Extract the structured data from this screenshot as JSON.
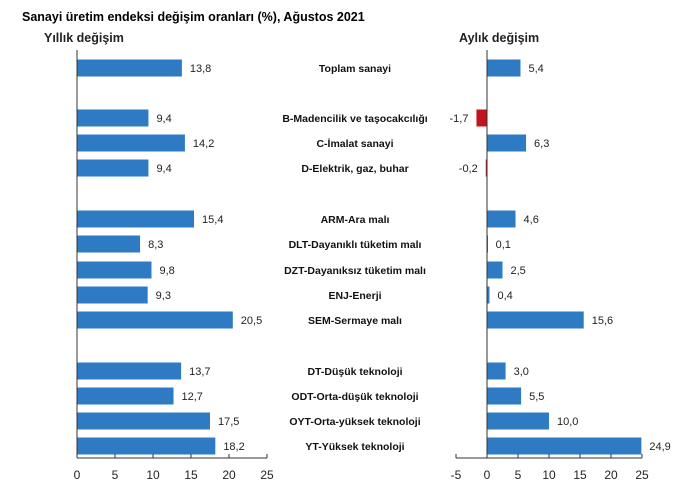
{
  "title": "Sanayi üretim endeksi değişim oranları (%), Ağustos 2021",
  "colors": {
    "positive": "#2E7BC4",
    "negative": "#C0151B",
    "axis": "#333333"
  },
  "chart_data": {
    "type": "bar",
    "orientation": "horizontal",
    "title": "Sanayi üretim endeksi değişim oranları (%), Ağustos 2021",
    "categories": [
      "Toplam sanayi",
      "B-Madencilik ve taşocakcılığı",
      "C-İmalat sanayi",
      "D-Elektrik, gaz, buhar",
      "ARM-Ara malı",
      "DLT-Dayanıklı tüketim malı",
      "DZT-Dayanıksız tüketim malı",
      "ENJ-Enerji",
      "SEM-Sermaye malı",
      "DT-Düşük teknoloji",
      "ODT-Orta-düşük teknoloji",
      "OYT-Orta-yüksek teknoloji",
      "YT-Yüksek teknoloji"
    ],
    "groups": [
      [
        0
      ],
      [
        1,
        2,
        3
      ],
      [
        4,
        5,
        6,
        7,
        8
      ],
      [
        9,
        10,
        11,
        12
      ]
    ],
    "series": [
      {
        "name": "Yıllık değişim",
        "values": [
          13.8,
          9.4,
          14.2,
          9.4,
          15.4,
          8.3,
          9.8,
          9.3,
          20.5,
          13.7,
          12.7,
          17.5,
          18.2
        ],
        "labels": [
          "13,8",
          "9,4",
          "14,2",
          "9,4",
          "15,4",
          "8,3",
          "9,8",
          "9,3",
          "20,5",
          "13,7",
          "12,7",
          "17,5",
          "18,2"
        ],
        "xlim": [
          0,
          25
        ],
        "ticks": [
          0,
          5,
          10,
          15,
          20,
          25
        ]
      },
      {
        "name": "Aylık değişim",
        "values": [
          5.4,
          -1.7,
          6.3,
          -0.2,
          4.6,
          0.1,
          2.5,
          0.4,
          15.6,
          3.0,
          5.5,
          10.0,
          24.9
        ],
        "labels": [
          "5,4",
          "-1,7",
          "6,3",
          "-0,2",
          "4,6",
          "0,1",
          "2,5",
          "0,4",
          "15,6",
          "3,0",
          "5,5",
          "10,0",
          "24,9"
        ],
        "xlim": [
          -5,
          25
        ],
        "ticks": [
          -5,
          0,
          5,
          10,
          15,
          20,
          25
        ]
      }
    ],
    "xlabel": "",
    "ylabel": "",
    "grid": false,
    "legend": "none"
  }
}
